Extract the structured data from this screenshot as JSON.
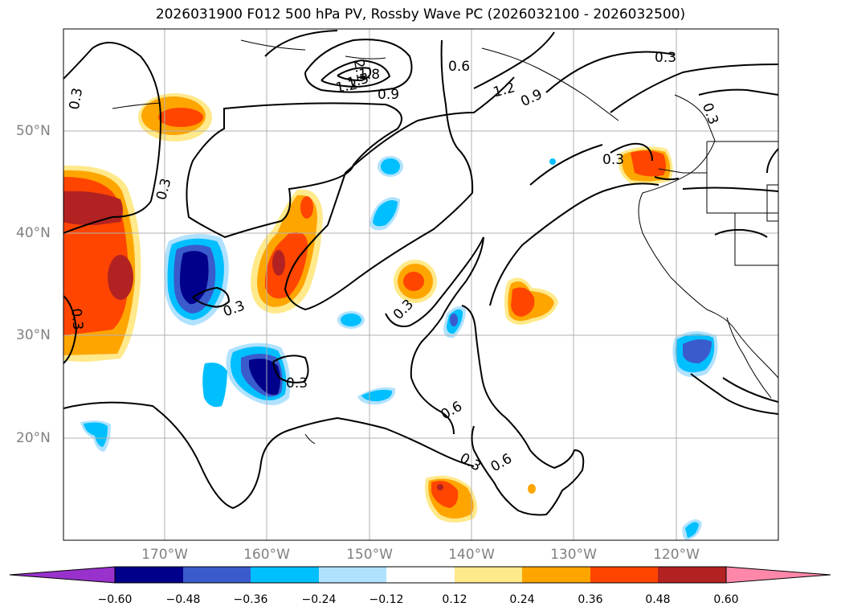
{
  "title": "2026031900 F012 500 hPa PV, Rossby Wave PC (2026032100 - 2026032500)",
  "axes": {
    "lat_labels": [
      "50°N",
      "40°N",
      "30°N",
      "20°N"
    ],
    "lon_labels": [
      "170°W",
      "160°W",
      "150°W",
      "140°W",
      "130°W",
      "120°W"
    ]
  },
  "colorbar": {
    "ticks": [
      "−0.60",
      "−0.48",
      "−0.36",
      "−0.24",
      "−0.12",
      "0.12",
      "0.24",
      "0.36",
      "0.48",
      "0.60"
    ],
    "colors": [
      "#9932cc",
      "#00008b",
      "#3a5bcc",
      "#00bfff",
      "#b0e2ff",
      "#ffffff",
      "#ffe98a",
      "#ffa500",
      "#ff4500",
      "#b22222",
      "#ff88aa"
    ]
  },
  "contour_labels": [
    "0.3",
    "0.3",
    "0.3",
    "0.3",
    "0.3",
    "0.3",
    "0.3",
    "0.3",
    "0.3",
    "0.3",
    "0.6",
    "0.6",
    "0.6",
    "0.9",
    "0.9",
    "1.2",
    "1.2",
    "1.5",
    "1.8",
    "2.1"
  ]
}
